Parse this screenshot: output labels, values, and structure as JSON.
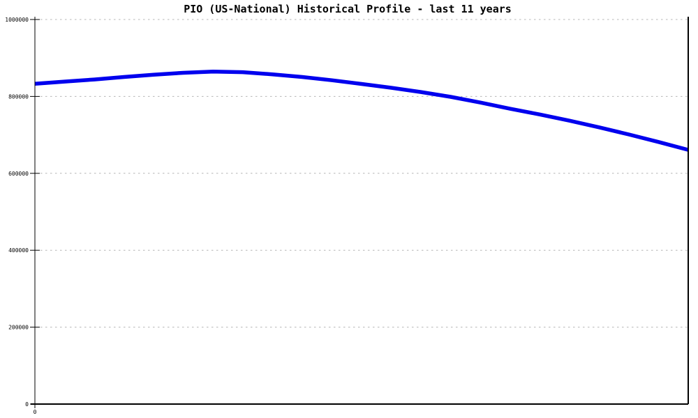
{
  "page": {
    "background": "#ffffff"
  },
  "chart_data": {
    "type": "line",
    "title": "PIO (US-National) Historical Profile - last 11 years",
    "xlabel": "",
    "ylabel": "",
    "xlim": [
      0,
      11
    ],
    "ylim": [
      0,
      1000000
    ],
    "x_unit": "years",
    "grid": "horizontal-dashed",
    "legend": "none",
    "yticks": [
      {
        "value": 1000000,
        "label": "1000000"
      },
      {
        "value": 800000,
        "label": "800000"
      },
      {
        "value": 600000,
        "label": "600000"
      },
      {
        "value": 400000,
        "label": "400000"
      },
      {
        "value": 200000,
        "label": "200000"
      },
      {
        "value": 0,
        "label": "0"
      }
    ],
    "xticks": [
      {
        "value": 0,
        "label": "0"
      }
    ],
    "series": [
      {
        "name": "PIO (US-National)",
        "color": "#0000ee",
        "x": [
          0,
          0.5,
          1,
          1.5,
          2,
          2.5,
          3,
          3.5,
          4,
          4.5,
          5,
          5.5,
          6,
          6.5,
          7,
          7.5,
          8,
          8.5,
          9,
          9.5,
          10,
          10.5,
          11
        ],
        "values": [
          833000,
          838500,
          844000,
          850500,
          856500,
          861500,
          864500,
          863000,
          857500,
          850500,
          842000,
          832500,
          822500,
          811500,
          799000,
          784000,
          768000,
          753000,
          737000,
          719500,
          701000,
          681500,
          661000
        ]
      }
    ],
    "colors": {
      "line": "#0000ee",
      "grid": "#b4b4b4",
      "axis": "#000000",
      "text": "#000000",
      "background": "#ffffff"
    }
  }
}
